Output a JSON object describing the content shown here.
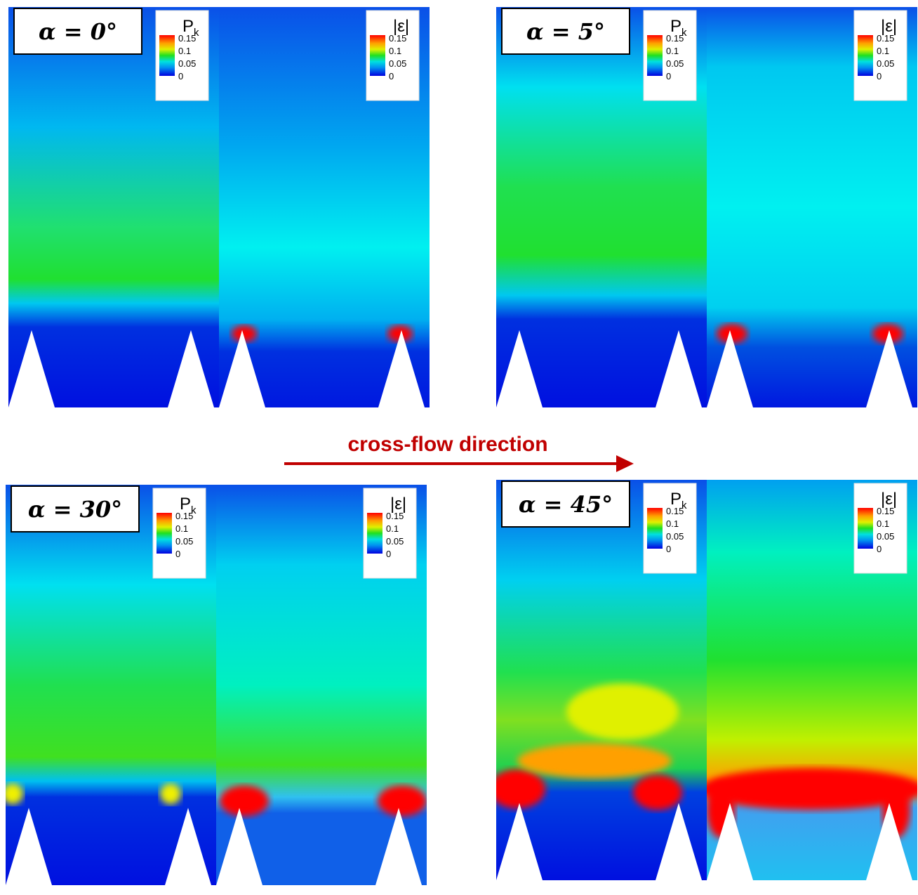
{
  "annotation": "cross-flow direction",
  "panels": [
    {
      "label": "α = 0°",
      "plots": [
        {
          "legend_title": "P",
          "legend_subscript": "k",
          "ticks": [
            "0.15",
            "0.1",
            "0.05",
            "0"
          ]
        },
        {
          "legend_title": "|ε|",
          "ticks": [
            "0.15",
            "0.1",
            "0.05",
            "0"
          ]
        }
      ]
    },
    {
      "label": "α = 5°",
      "plots": [
        {
          "legend_title": "P",
          "legend_subscript": "k",
          "ticks": [
            "0.15",
            "0.1",
            "0.05",
            "0"
          ]
        },
        {
          "legend_title": "|ε|",
          "ticks": [
            "0.15",
            "0.1",
            "0.05",
            "0"
          ]
        }
      ]
    },
    {
      "label": "α = 30°",
      "plots": [
        {
          "legend_title": "P",
          "legend_subscript": "k",
          "ticks": [
            "0.15",
            "0.1",
            "0.05",
            "0"
          ]
        },
        {
          "legend_title": "|ε|",
          "ticks": [
            "0.15",
            "0.1",
            "0.05",
            "0"
          ]
        }
      ]
    },
    {
      "label": "α = 45°",
      "plots": [
        {
          "legend_title": "P",
          "legend_subscript": "k",
          "ticks": [
            "0.15",
            "0.1",
            "0.05",
            "0"
          ]
        },
        {
          "legend_title": "|ε|",
          "ticks": [
            "0.15",
            "0.1",
            "0.05",
            "0"
          ]
        }
      ]
    }
  ]
}
